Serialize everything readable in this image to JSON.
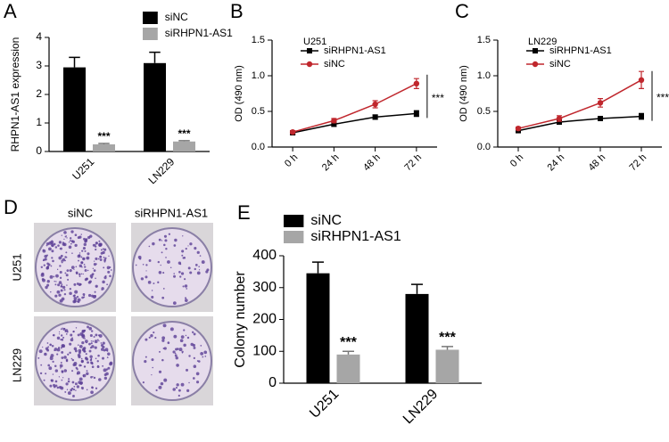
{
  "chart_data": [
    {
      "type": "bar",
      "label": "A",
      "ylabel": "RHPN1-AS1 expression",
      "categories": [
        "U251",
        "LN229"
      ],
      "series": [
        {
          "name": "siNC",
          "color": "#000000",
          "values": [
            2.95,
            3.1
          ],
          "errors": [
            0.35,
            0.38
          ]
        },
        {
          "name": "siRHPN1-AS1",
          "color": "#a6a6a6",
          "values": [
            0.25,
            0.35
          ],
          "errors": [
            0.03,
            0.03
          ],
          "annotations": [
            "***",
            "***"
          ]
        }
      ],
      "ylim": [
        0,
        4
      ],
      "yticks": [
        0,
        1,
        2,
        3,
        4
      ]
    },
    {
      "type": "line",
      "label": "B",
      "title": "U251",
      "ylabel": "OD (490 nm)",
      "categories": [
        "0 h",
        "24 h",
        "48 h",
        "72 h"
      ],
      "series": [
        {
          "name": "siRHPN1-AS1",
          "color": "#000000",
          "marker": "square",
          "values": [
            0.2,
            0.32,
            0.42,
            0.47
          ],
          "errors": [
            0.02,
            0.03,
            0.03,
            0.04
          ]
        },
        {
          "name": "siNC",
          "color": "#c0272d",
          "marker": "circle",
          "values": [
            0.21,
            0.37,
            0.6,
            0.89
          ],
          "errors": [
            0.02,
            0.03,
            0.05,
            0.07
          ]
        }
      ],
      "ylim": [
        0,
        1.5
      ],
      "yticks": [
        {
          "value": 0,
          "label": "0.0"
        },
        {
          "value": 0.5,
          "label": "0.5"
        },
        {
          "value": 1,
          "label": "1.0"
        },
        {
          "value": 1.5,
          "label": "1.5"
        }
      ],
      "annotation": "***"
    },
    {
      "type": "line",
      "label": "C",
      "title": "LN229",
      "ylabel": "OD (490 nm)",
      "categories": [
        "0 h",
        "24 h",
        "48 h",
        "72 h"
      ],
      "series": [
        {
          "name": "siRHPN1-AS1",
          "color": "#000000",
          "marker": "square",
          "values": [
            0.23,
            0.35,
            0.4,
            0.43
          ],
          "errors": [
            0.02,
            0.03,
            0.03,
            0.04
          ]
        },
        {
          "name": "siNC",
          "color": "#c0272d",
          "marker": "circle",
          "values": [
            0.26,
            0.4,
            0.62,
            0.94
          ],
          "errors": [
            0.02,
            0.04,
            0.06,
            0.12
          ]
        }
      ],
      "ylim": [
        0,
        1.5
      ],
      "yticks": [
        {
          "value": 0,
          "label": "0.0"
        },
        {
          "value": 0.5,
          "label": "0.5"
        },
        {
          "value": 1,
          "label": "1.0"
        },
        {
          "value": 1.5,
          "label": "1.5"
        }
      ],
      "annotation": "***"
    },
    {
      "type": "bar",
      "label": "E",
      "ylabel": "Colony number",
      "categories": [
        "U251",
        "LN229"
      ],
      "series": [
        {
          "name": "siNC",
          "color": "#000000",
          "values": [
            345,
            280
          ],
          "errors": [
            35,
            30
          ]
        },
        {
          "name": "siRHPN1-AS1",
          "color": "#a6a6a6",
          "values": [
            90,
            105
          ],
          "errors": [
            10,
            10
          ],
          "annotations": [
            "***",
            "***"
          ]
        }
      ],
      "ylim": [
        0,
        400
      ],
      "yticks": [
        0,
        100,
        200,
        300,
        400
      ]
    }
  ],
  "panel_d": {
    "label": "D",
    "columns": [
      "siNC",
      "siRHPN1-AS1"
    ],
    "rows": [
      "U251",
      "LN229"
    ]
  }
}
